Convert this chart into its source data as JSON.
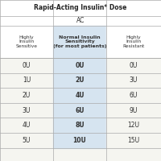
{
  "title": "Rapid-Acting Insulin* Dose",
  "ac_label": "AC",
  "col_headers": [
    "Highly\nInsulin\nSensitive",
    "Normal Insulin\nSensitivity\n(for most patients)",
    "Highly\nInsulin\nResistant"
  ],
  "rows": [
    [
      "0U",
      "0U",
      "0U"
    ],
    [
      "1U",
      "2U",
      "3U"
    ],
    [
      "2U",
      "4U",
      "6U"
    ],
    [
      "3U",
      "6U",
      "9U"
    ],
    [
      "4U",
      "8U",
      "12U"
    ],
    [
      "5U",
      "10U",
      "15U"
    ]
  ],
  "bg_color": "#f5f5f0",
  "middle_col_bg": "#d6e4f0",
  "border_color": "#aaaaaa",
  "title_color": "#222222",
  "text_color": "#333333"
}
